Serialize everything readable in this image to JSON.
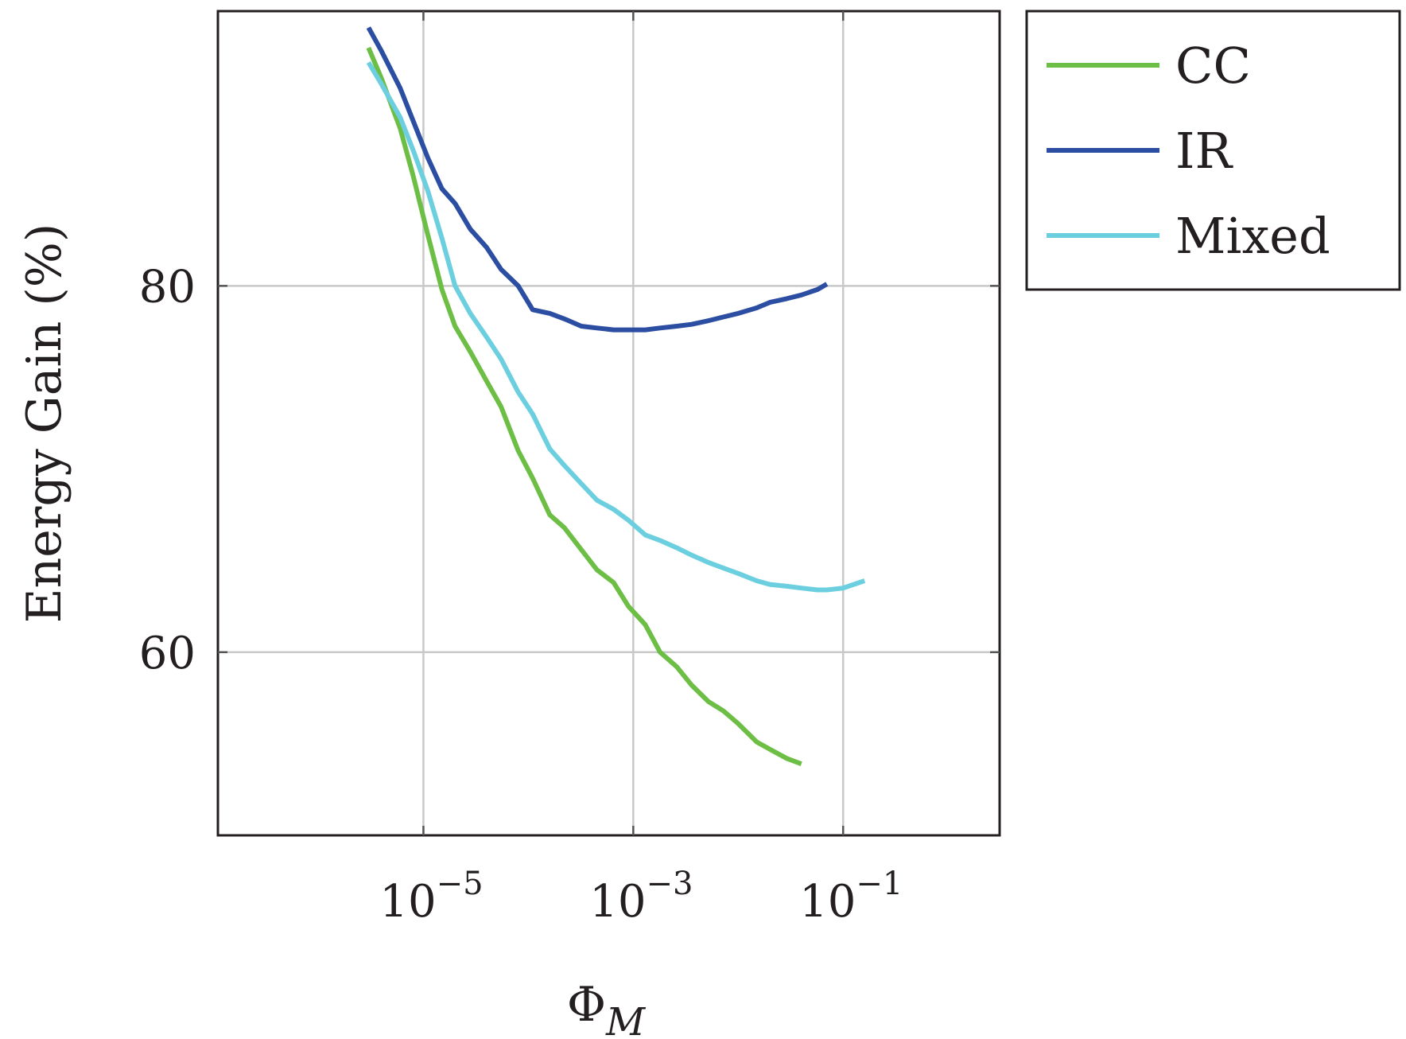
{
  "chart_data": {
    "type": "line",
    "title": "",
    "xlabel": "Φ",
    "xlabel_subscript": "M",
    "ylabel": "Energy Gain (%)",
    "x_scale": "log",
    "xlim": [
      1.1e-07,
      3.1
    ],
    "ylim": [
      50,
      95
    ],
    "grid": true,
    "legend_position": "outside-right-top",
    "x_ticks": [
      {
        "value": 1e-05,
        "base": "10",
        "exp": "−5"
      },
      {
        "value": 0.001,
        "base": "10",
        "exp": "−3"
      },
      {
        "value": 0.1,
        "base": "10",
        "exp": "−1"
      }
    ],
    "y_ticks": [
      {
        "value": 60,
        "label": "60"
      },
      {
        "value": 80,
        "label": "80"
      }
    ],
    "series": [
      {
        "name": "CC",
        "color": "#6cbe45",
        "x": [
          3e-06,
          4e-06,
          6e-06,
          8e-06,
          1.1e-05,
          1.5e-05,
          2e-05,
          2.8e-05,
          4e-05,
          5.5e-05,
          8e-05,
          0.00011,
          0.00016,
          0.00022,
          0.00032,
          0.00045,
          0.00065,
          0.0009,
          0.0013,
          0.0018,
          0.0026,
          0.0036,
          0.0052,
          0.0072,
          0.01,
          0.015,
          0.02,
          0.029,
          0.04
        ],
        "values": [
          93,
          91.3,
          88.6,
          86,
          82.8,
          79.8,
          77.8,
          76.4,
          74.8,
          73.4,
          71,
          69.5,
          67.5,
          66.8,
          65.6,
          64.5,
          63.8,
          62.5,
          61.5,
          60,
          59.2,
          58.2,
          57.3,
          56.8,
          56.1,
          55.1,
          54.7,
          54.2,
          53.9
        ]
      },
      {
        "name": "IR",
        "color": "#2b4ea2",
        "x": [
          3e-06,
          4e-06,
          6e-06,
          8e-06,
          1.1e-05,
          1.5e-05,
          2e-05,
          2.8e-05,
          4e-05,
          5.5e-05,
          8e-05,
          0.00011,
          0.00016,
          0.00022,
          0.00032,
          0.00045,
          0.00065,
          0.0009,
          0.0013,
          0.0018,
          0.0026,
          0.0036,
          0.0052,
          0.0072,
          0.01,
          0.015,
          0.02,
          0.029,
          0.04,
          0.057,
          0.07
        ],
        "values": [
          94.1,
          92.8,
          90.8,
          89,
          87,
          85.3,
          84.5,
          83.1,
          82.1,
          80.9,
          80,
          78.7,
          78.5,
          78.2,
          77.8,
          77.7,
          77.6,
          77.6,
          77.6,
          77.7,
          77.8,
          77.9,
          78.1,
          78.3,
          78.5,
          78.8,
          79.1,
          79.3,
          79.5,
          79.8,
          80.1
        ]
      },
      {
        "name": "Mixed",
        "color": "#6ccfe0",
        "x": [
          3e-06,
          4e-06,
          6e-06,
          8e-06,
          1.1e-05,
          1.5e-05,
          2e-05,
          2.8e-05,
          4e-05,
          5.5e-05,
          8e-05,
          0.00011,
          0.00016,
          0.00022,
          0.00032,
          0.00045,
          0.00065,
          0.0009,
          0.0013,
          0.0018,
          0.0026,
          0.0036,
          0.0052,
          0.0072,
          0.01,
          0.015,
          0.02,
          0.029,
          0.04,
          0.057,
          0.07,
          0.1,
          0.16
        ],
        "values": [
          92.2,
          91,
          89.2,
          87.4,
          85.2,
          82.6,
          80,
          78.5,
          77.2,
          76,
          74.2,
          73,
          71.1,
          70.2,
          69.2,
          68.3,
          67.8,
          67.2,
          66.4,
          66.1,
          65.7,
          65.3,
          64.9,
          64.6,
          64.3,
          63.9,
          63.7,
          63.6,
          63.5,
          63.4,
          63.4,
          63.5,
          63.9
        ]
      }
    ]
  }
}
